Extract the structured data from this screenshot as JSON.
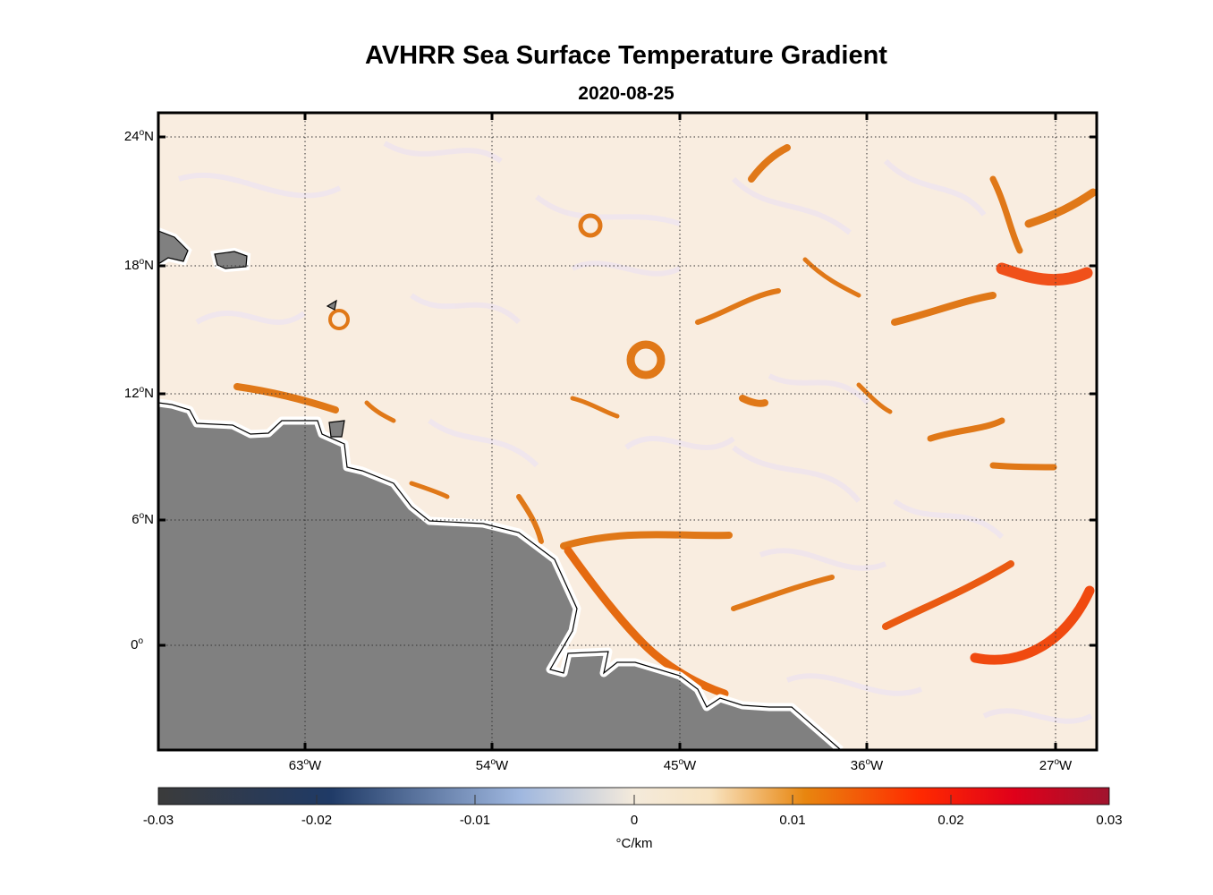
{
  "title": "AVHRR Sea Surface Temperature Gradient",
  "subtitle": "2020-08-25",
  "lat_labels": [
    "24",
    "18",
    "12",
    "6",
    "0"
  ],
  "lat_suffix": "N",
  "lon_labels": [
    "63",
    "54",
    "45",
    "36",
    "27"
  ],
  "lon_suffix": "W",
  "colorbar": {
    "ticks": [
      "-0.03",
      "-0.02",
      "-0.01",
      "0",
      "0.01",
      "0.02",
      "0.03"
    ],
    "units": "°C/km",
    "stops": [
      "#3b3b3b",
      "#1f3a66",
      "#9fb7df",
      "#f4eadb",
      "#f8e4c2",
      "#e8860f",
      "#ff2a00",
      "#e0001a",
      "#a0142e"
    ]
  },
  "colors": {
    "land": "#808080",
    "ocean": "#f9ede0",
    "front": "#e07818"
  }
}
